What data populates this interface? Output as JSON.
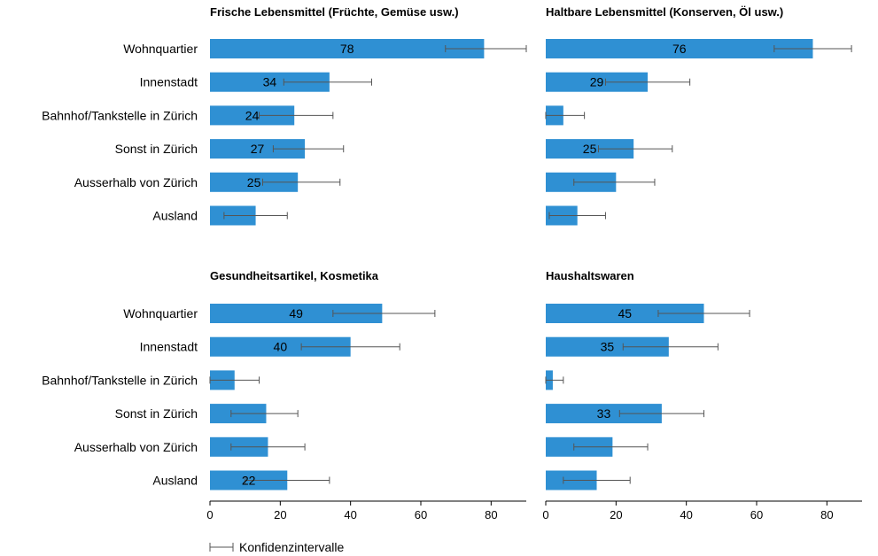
{
  "chart_data": [
    {
      "type": "bar",
      "orientation": "horizontal",
      "title": "Frische Lebensmittel (Früchte, Gemüse usw.)",
      "categories": [
        "Wohnquartier",
        "Innenstadt",
        "Bahnhof/Tankstelle in Zürich",
        "Sonst in Zürich",
        "Ausserhalb von Zürich",
        "Ausland"
      ],
      "values": [
        78,
        34,
        24,
        27,
        25,
        13
      ],
      "ci_low": [
        67,
        21,
        14,
        18,
        15,
        4
      ],
      "ci_high": [
        90,
        46,
        35,
        38,
        37,
        22
      ],
      "value_labels": [
        "78",
        "34",
        "24",
        "27",
        "25",
        ""
      ],
      "xlim": [
        0,
        90
      ],
      "xticks": [
        "0",
        "20",
        "40",
        "60",
        "80"
      ]
    },
    {
      "type": "bar",
      "orientation": "horizontal",
      "title": "Haltbare Lebensmittel (Konserven, Öl usw.)",
      "categories": [
        "Wohnquartier",
        "Innenstadt",
        "Bahnhof/Tankstelle in Zürich",
        "Sonst in Zürich",
        "Ausserhalb von Zürich",
        "Ausland"
      ],
      "values": [
        76,
        29,
        5,
        25,
        20,
        9
      ],
      "ci_low": [
        65,
        17,
        0,
        15,
        8,
        1
      ],
      "ci_high": [
        87,
        41,
        11,
        36,
        31,
        17
      ],
      "value_labels": [
        "76",
        "29",
        "",
        "25",
        "",
        ""
      ],
      "xlim": [
        0,
        90
      ],
      "xticks": [
        "0",
        "20",
        "40",
        "60",
        "80"
      ]
    },
    {
      "type": "bar",
      "orientation": "horizontal",
      "title": "Gesundheitsartikel, Kosmetika",
      "categories": [
        "Wohnquartier",
        "Innenstadt",
        "Bahnhof/Tankstelle in Zürich",
        "Sonst in Zürich",
        "Ausserhalb von Zürich",
        "Ausland"
      ],
      "values": [
        49,
        40,
        7,
        16,
        16.5,
        22
      ],
      "ci_low": [
        35,
        26,
        0,
        6,
        6,
        10
      ],
      "ci_high": [
        64,
        54,
        14,
        25,
        27,
        34
      ],
      "value_labels": [
        "49",
        "40",
        "",
        "",
        "",
        "22"
      ],
      "xlim": [
        0,
        90
      ],
      "xticks": [
        "0",
        "20",
        "40",
        "60",
        "80"
      ]
    },
    {
      "type": "bar",
      "orientation": "horizontal",
      "title": "Haushaltswaren",
      "categories": [
        "Wohnquartier",
        "Innenstadt",
        "Bahnhof/Tankstelle in Zürich",
        "Sonst in Zürich",
        "Ausserhalb von Zürich",
        "Ausland"
      ],
      "values": [
        45,
        35,
        2,
        33,
        19,
        14.5
      ],
      "ci_low": [
        32,
        22,
        0,
        21,
        8,
        5
      ],
      "ci_high": [
        58,
        49,
        5,
        45,
        29,
        24
      ],
      "value_labels": [
        "45",
        "35",
        "",
        "33",
        "",
        ""
      ],
      "xlim": [
        0,
        90
      ],
      "xticks": [
        "0",
        "20",
        "40",
        "60",
        "80"
      ]
    }
  ],
  "legend": {
    "label": "Konfidenzintervalle"
  },
  "colors": {
    "bar": "#2f90d3",
    "errorbar": "#555555",
    "axis": "#000000"
  }
}
